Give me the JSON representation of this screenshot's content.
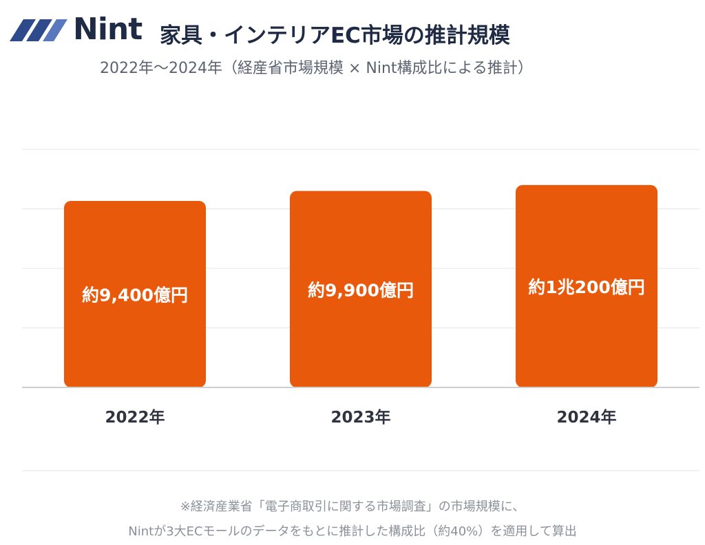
{
  "brand": {
    "name": "Nint"
  },
  "header": {
    "title": "家具・インテリアEC市場の推計規模",
    "subtitle": "2022年～2024年（経産省市場規模 × Nint構成比による推計）"
  },
  "footnotes": [
    "※経済産業省「電子商取引に関する市場調査」の市場規模に、",
    "Nintが3大ECモールのデータをもとに推計した構成比（約40%）を適用して算出"
  ],
  "colors": {
    "bar": "#e8590c",
    "grid": "#e6e6e6",
    "axis": "#cfcfcf",
    "text_dark": "#2f3440",
    "logo_blue": "#2f4a8a"
  },
  "chart_data": {
    "type": "bar",
    "categories": [
      "2022年",
      "2023年",
      "2024年"
    ],
    "values": [
      9400,
      9900,
      10200
    ],
    "value_labels": [
      "約9,400億円",
      "約9,900億円",
      "約1兆200億円"
    ],
    "ylim": [
      0,
      12000
    ],
    "grid": true,
    "legend": "none"
  }
}
